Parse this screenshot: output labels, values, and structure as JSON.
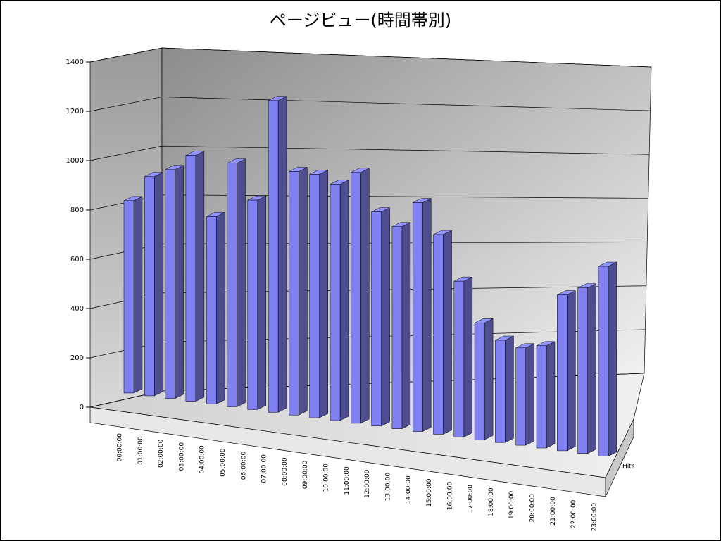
{
  "chart_data": {
    "type": "bar3d",
    "title": "ページビュー(時間帯別)",
    "categories": [
      "00:00:00",
      "01:00:00",
      "02:00:00",
      "03:00:00",
      "04:00:00",
      "05:00:00",
      "06:00:00",
      "07:00:00",
      "08:00:00",
      "09:00:00",
      "10:00:00",
      "11:00:00",
      "12:00:00",
      "13:00:00",
      "14:00:00",
      "15:00:00",
      "16:00:00",
      "17:00:00",
      "18:00:00",
      "19:00:00",
      "20:00:00",
      "21:00:00",
      "22:00:00",
      "23:00:00"
    ],
    "series": [
      {
        "name": "Hits",
        "color": "#8080f0",
        "values": [
          790,
          900,
          940,
          1010,
          770,
          1000,
          860,
          1280,
          1000,
          1000,
          970,
          1030,
          880,
          830,
          940,
          820,
          640,
          480,
          420,
          400,
          420,
          640,
          680,
          780
        ]
      }
    ],
    "ylim": [
      0,
      1400
    ],
    "yticks": [
      0,
      200,
      400,
      600,
      800,
      1000,
      1200,
      1400
    ],
    "grid": true
  }
}
